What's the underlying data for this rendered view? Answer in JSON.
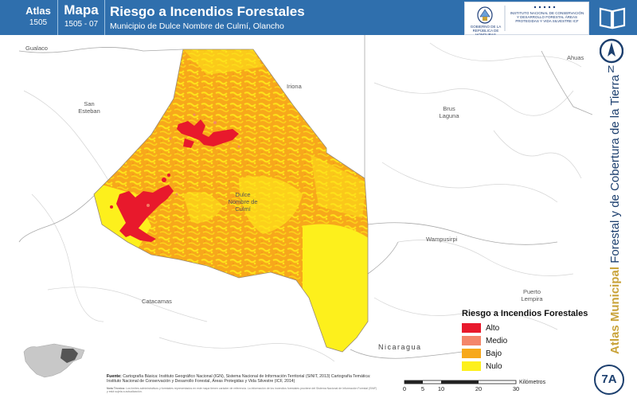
{
  "header": {
    "atlas_label": "Atlas",
    "atlas_code": "1505",
    "mapa_label": "Mapa",
    "mapa_code": "1505 - 07",
    "title": "Riesgo a Incendios Forestales",
    "subtitle": "Municipio de Dulce Nombre de Culmí, Olancho",
    "logo_left_text": "GOBIERNO DE LA REPÚBLICA DE HONDURAS",
    "logo_right_text": "INSTITUTO NACIONAL DE CONSERVACIÓN Y DESARROLLO FORESTAL ÁREAS PROTEGIDAS Y VIDA SILVESTRE ICF"
  },
  "sidebar": {
    "north_label": "N",
    "vertical_bold": "Atlas Municipal",
    "vertical_rest": " Forestal y de Cobertura de la Tierra",
    "badge": "7A"
  },
  "places": {
    "guaalaco": "Gualaco",
    "san_esteban": "San\nEsteban",
    "iriona": "Iriona",
    "brus_laguna": "Brus\nLaguna",
    "ahuas": "Ahuas",
    "dulce_nombre": "Dulce\nNombre de\nCulmí",
    "wampusirpi": "Wampusirpi",
    "puerto_lempira": "Puerto\nLempira",
    "catacamas": "Catacamas",
    "nicaragua": "Nicaragua"
  },
  "legend": {
    "title": "Riesgo a Incendios Forestales",
    "items": [
      {
        "label": "Alto",
        "color": "#e8192c"
      },
      {
        "label": "Medio",
        "color": "#f4866a"
      },
      {
        "label": "Bajo",
        "color": "#f7a81b"
      },
      {
        "label": "Nulo",
        "color": "#fdf01c"
      }
    ]
  },
  "colors": {
    "header_bg": "#2f6fad",
    "accent_dark": "#1c3f6e",
    "accent_gold": "#c9a33a"
  },
  "footer": {
    "fuente_label": "Fuente:",
    "fuente_text": "Cartografía Básica: Instituto Geográfico Nacional (IGN), Sistema Nacional de Información Territorial (SINIT, 2013) Cartografía Temática: Instituto Nacional de Conservación y Desarrollo Forestal, Áreas Protegidas y Vida Silvestre (ICF, 2014)",
    "nota_label": "Nota Técnica:",
    "nota_text": "Los límites administrativos y forestales representados en este mapa tienen carácter de referencia. La información de los incendios forestales proviene del Sistema Nacional de Información Forestal (SNIF) y está sujeta a actualización."
  },
  "scale": {
    "ticks": [
      "0",
      "5",
      "10",
      "20",
      "30"
    ],
    "unit": "Kilómetros"
  }
}
